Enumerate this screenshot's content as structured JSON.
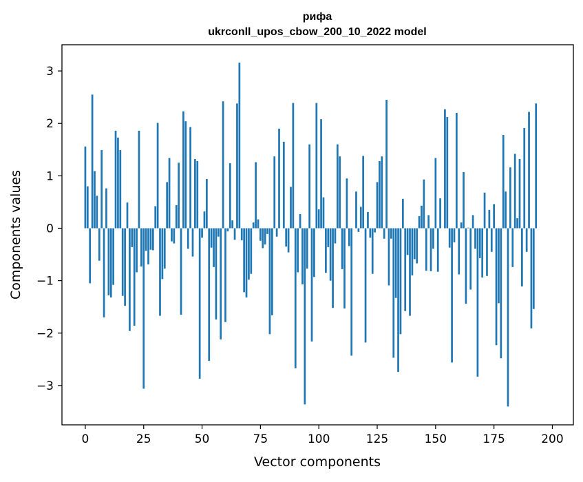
{
  "chart_data": {
    "type": "bar",
    "title_line1": "рифа",
    "title_line2": "ukrconll_upos_cbow_200_10_2022 model",
    "xlabel": "Vector components",
    "ylabel": "Components values",
    "xlim": [
      -10,
      209
    ],
    "ylim": [
      -3.75,
      3.5
    ],
    "xticks": [
      0,
      25,
      50,
      75,
      100,
      125,
      150,
      175,
      200
    ],
    "yticks": [
      -3,
      -2,
      -1,
      0,
      1,
      2,
      3
    ],
    "xtick_labels": [
      "0",
      "25",
      "50",
      "75",
      "100",
      "125",
      "150",
      "175",
      "200"
    ],
    "ytick_labels": [
      "−3",
      "−2",
      "−1",
      "0",
      "1",
      "2",
      "3"
    ],
    "bar_color": "#1f77b4",
    "grid": false,
    "values": [
      1.56,
      0.8,
      -1.05,
      2.55,
      1.09,
      0.62,
      -0.62,
      1.49,
      -1.7,
      0.76,
      -1.28,
      -1.32,
      -1.08,
      1.86,
      1.73,
      1.49,
      -1.29,
      -1.48,
      0.49,
      -1.96,
      -0.36,
      -1.86,
      -0.84,
      1.86,
      -0.73,
      -3.06,
      -0.43,
      -0.69,
      -0.41,
      -0.42,
      0.42,
      2.01,
      -1.67,
      -0.97,
      -0.77,
      0.88,
      1.34,
      -0.25,
      -0.29,
      0.44,
      1.25,
      -1.65,
      2.23,
      2.04,
      -0.39,
      1.93,
      -0.54,
      1.32,
      1.28,
      -2.87,
      -0.18,
      0.32,
      0.94,
      -2.53,
      -0.37,
      -0.74,
      -1.74,
      -0.16,
      -2.12,
      2.42,
      -1.79,
      -0.06,
      1.24,
      0.15,
      -0.22,
      2.38,
      3.16,
      -0.23,
      -1.22,
      -1.32,
      -0.98,
      -0.87,
      0.11,
      1.26,
      0.17,
      -0.24,
      -0.38,
      -0.31,
      -0.11,
      -2.02,
      -1.66,
      1.37,
      -0.16,
      1.9,
      0.0,
      1.65,
      -0.35,
      -0.46,
      0.79,
      2.39,
      -2.67,
      -0.84,
      0.27,
      -1.07,
      -3.36,
      -0.77,
      1.6,
      -2.16,
      -0.93,
      2.39,
      0.36,
      2.08,
      0.59,
      -0.85,
      -0.36,
      -1.0,
      -1.52,
      -0.29,
      1.6,
      1.37,
      -0.78,
      -1.53,
      0.95,
      -0.34,
      -2.43,
      0.0,
      0.7,
      -0.07,
      0.41,
      1.38,
      -2.18,
      0.31,
      -0.18,
      -0.87,
      -0.08,
      0.88,
      1.28,
      1.37,
      -0.2,
      2.45,
      -1.09,
      -0.2,
      -2.47,
      -1.33,
      -2.74,
      -2.02,
      0.56,
      -1.58,
      -0.51,
      -1.67,
      -0.9,
      -0.59,
      -0.67,
      0.23,
      0.43,
      0.93,
      -0.81,
      0.25,
      -0.82,
      -0.39,
      1.34,
      -0.83,
      0.57,
      0.0,
      2.27,
      2.12,
      -0.37,
      -2.56,
      -0.27,
      2.2,
      -0.88,
      0.11,
      1.07,
      -1.44,
      0.01,
      -1.17,
      0.25,
      -0.39,
      -2.83,
      -0.57,
      -0.94,
      0.68,
      -0.91,
      0.35,
      -0.45,
      0.46,
      -2.23,
      -1.43,
      -2.48,
      1.78,
      0.7,
      -3.4,
      1.16,
      -0.74,
      1.42,
      0.19,
      1.32,
      -1.11,
      1.91,
      -0.45,
      2.22,
      -1.91,
      -1.54,
      2.38
    ]
  }
}
